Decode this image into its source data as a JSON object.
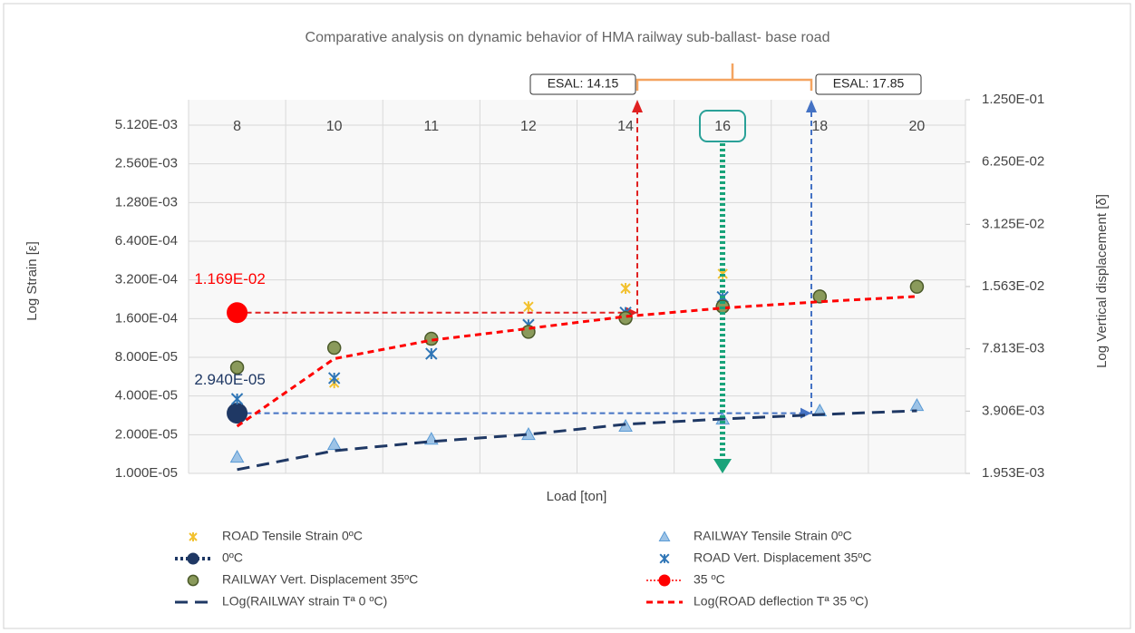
{
  "chart_data": {
    "type": "scatter",
    "title": "Comparative analysis on dynamic behavior of HMA railway sub-ballast- base road",
    "x_label": "Load [ton]",
    "y_label": "Log Strain [ε]",
    "y2_label": "Log Vertical displacement [δ]",
    "categories": [
      "8",
      "10",
      "11",
      "12",
      "14",
      "16",
      "18",
      "20"
    ],
    "log_scale": true,
    "grid": true,
    "legend": "bottom",
    "ylim": [
      1e-05,
      0.00807
    ],
    "yticks": [
      {
        "value": 1e-05,
        "label": "1.000E-05"
      },
      {
        "value": 2e-05,
        "label": "2.000E-05"
      },
      {
        "value": 4e-05,
        "label": "4.000E-05"
      },
      {
        "value": 8e-05,
        "label": "8.000E-05"
      },
      {
        "value": 0.00016,
        "label": "1.600E-04"
      },
      {
        "value": 0.00032,
        "label": "3.200E-04"
      },
      {
        "value": 0.00064,
        "label": "6.400E-04"
      },
      {
        "value": 0.00128,
        "label": "1.280E-03"
      },
      {
        "value": 0.00256,
        "label": "2.560E-03"
      },
      {
        "value": 0.00512,
        "label": "5.120E-03"
      }
    ],
    "y2lim": [
      0.001953,
      0.125
    ],
    "y2ticks": [
      {
        "value": 0.001953,
        "label": "1.953E-03"
      },
      {
        "value": 0.003906,
        "label": "3.906E-03"
      },
      {
        "value": 0.007813,
        "label": "7.813E-03"
      },
      {
        "value": 0.01563,
        "label": "1.563E-02"
      },
      {
        "value": 0.03125,
        "label": "3.125E-02"
      },
      {
        "value": 0.0625,
        "label": "6.250E-02"
      },
      {
        "value": 0.125,
        "label": "1.250E-01"
      }
    ],
    "annotations": [
      "ESAL: 14.15",
      "ESAL: 17.85"
    ],
    "series": [
      {
        "name": "ROAD Tensile Strain 0ºC",
        "color": "#f2c12e",
        "marker": "x",
        "axis": "y",
        "values": [
          2.87e-05,
          5.07e-05,
          0.000109,
          0.000198,
          0.000275,
          0.000357,
          null,
          null
        ]
      },
      {
        "name": "RAILWAY Tensile Strain 0ºC",
        "color": "#9dc3e6",
        "marker": "triangle",
        "axis": "y",
        "values": [
          1.34e-05,
          1.68e-05,
          1.85e-05,
          2.01e-05,
          2.33e-05,
          2.65e-05,
          3.07e-05,
          3.38e-05
        ]
      },
      {
        "name": "0ºC",
        "color": "#1f3864",
        "marker": "dot",
        "line": "dotted",
        "axis": "y",
        "values": [
          2.94e-05,
          null,
          null,
          null,
          null,
          null,
          null,
          null
        ],
        "value_labels": [
          "2.940E-05",
          null,
          null,
          null,
          null,
          null,
          null,
          null
        ]
      },
      {
        "name": "ROAD Vert. Displacement 35ºC",
        "color": "#2e75b6",
        "marker": "asterisk",
        "axis": "y2",
        "values": [
          0.00447,
          0.00564,
          0.0074,
          0.0102,
          0.0117,
          0.0139,
          null,
          null
        ]
      },
      {
        "name": "RAILWAY Vert. Displacement 35ºC",
        "color": "#8a9a5b",
        "marker": "circle",
        "axis": "y2",
        "values": [
          0.00635,
          0.0079,
          0.00874,
          0.00944,
          0.011,
          0.0125,
          0.014,
          0.0156
        ]
      },
      {
        "name": "35 ºC",
        "color": "#ff0000",
        "marker": "dot",
        "line": "dotted-thin",
        "axis": "y2",
        "values": [
          0.01169,
          null,
          null,
          null,
          null,
          null,
          null,
          null
        ],
        "value_labels": [
          "1.169E-02",
          null,
          null,
          null,
          null,
          null,
          null,
          null
        ]
      },
      {
        "name": "LOg(RAILWAY strain Tª 0 ºC)",
        "color": "#1f3864",
        "line": "long-dash",
        "axis": "y",
        "values": [
          1.07e-05,
          1.5e-05,
          1.77e-05,
          2.01e-05,
          2.41e-05,
          2.65e-05,
          2.87e-05,
          3.07e-05
        ]
      },
      {
        "name": "Log(ROAD deflection Tª 35 ºC)",
        "color": "#ff0000",
        "line": "dash",
        "axis": "y2",
        "values": [
          0.0033,
          0.007,
          0.0086,
          0.0098,
          0.0112,
          0.0123,
          0.0132,
          0.014
        ]
      }
    ]
  }
}
